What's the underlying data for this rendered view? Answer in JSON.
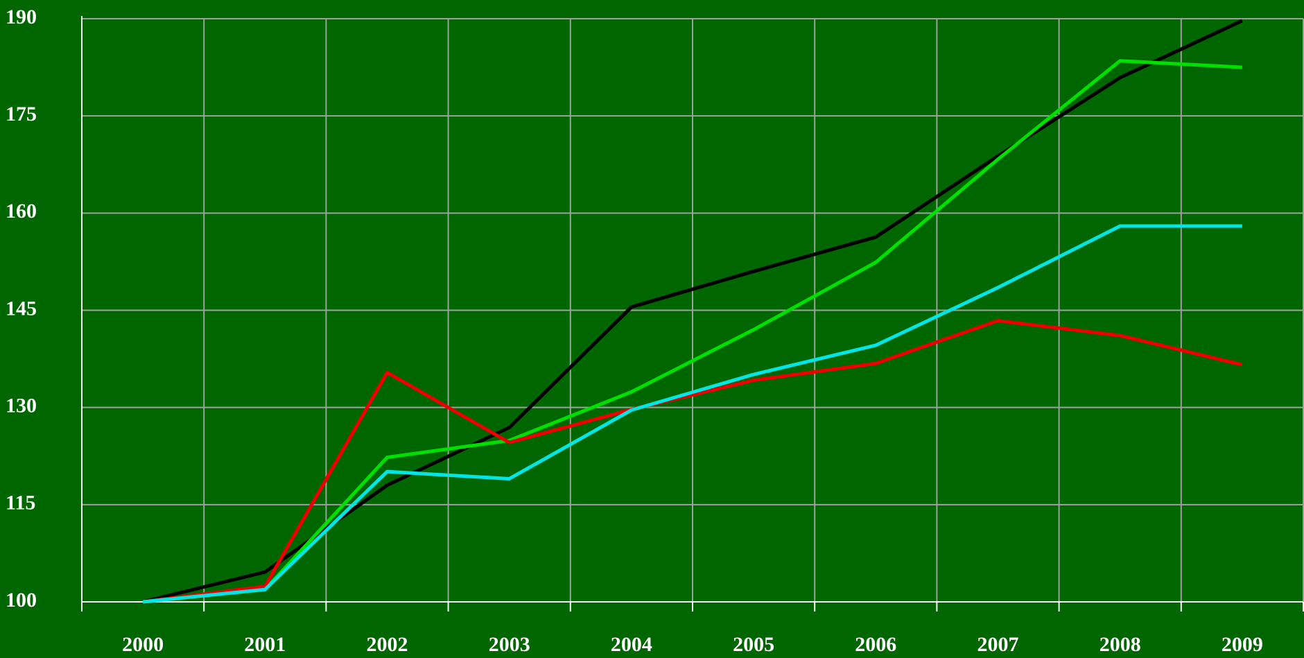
{
  "chart_data": {
    "type": "line",
    "categories": [
      "2000",
      "2001",
      "2002",
      "2003",
      "2004",
      "2005",
      "2006",
      "2007",
      "2008",
      "2009"
    ],
    "series": [
      {
        "color": "#000000",
        "values": [
          100,
          104.6,
          118,
          126.9,
          145.5,
          151,
          156.3,
          168.8,
          180.9,
          189.7
        ]
      },
      {
        "color": "#00e000",
        "values": [
          100,
          101.9,
          122.3,
          124.9,
          132.4,
          142,
          152.4,
          168.3,
          183.5,
          182.5
        ]
      },
      {
        "color": "#ee0000",
        "values": [
          100,
          102.4,
          135.4,
          124.6,
          129.7,
          134.2,
          136.8,
          143.4,
          141.1,
          136.6
        ]
      },
      {
        "color": "#00e6e6",
        "values": [
          100,
          101.9,
          120.1,
          119,
          129.6,
          135.1,
          139.6,
          148.5,
          158,
          158
        ]
      }
    ],
    "ylim": [
      100,
      190
    ],
    "yticks": [
      100,
      115,
      130,
      145,
      160,
      175,
      190
    ],
    "grid": true
  }
}
